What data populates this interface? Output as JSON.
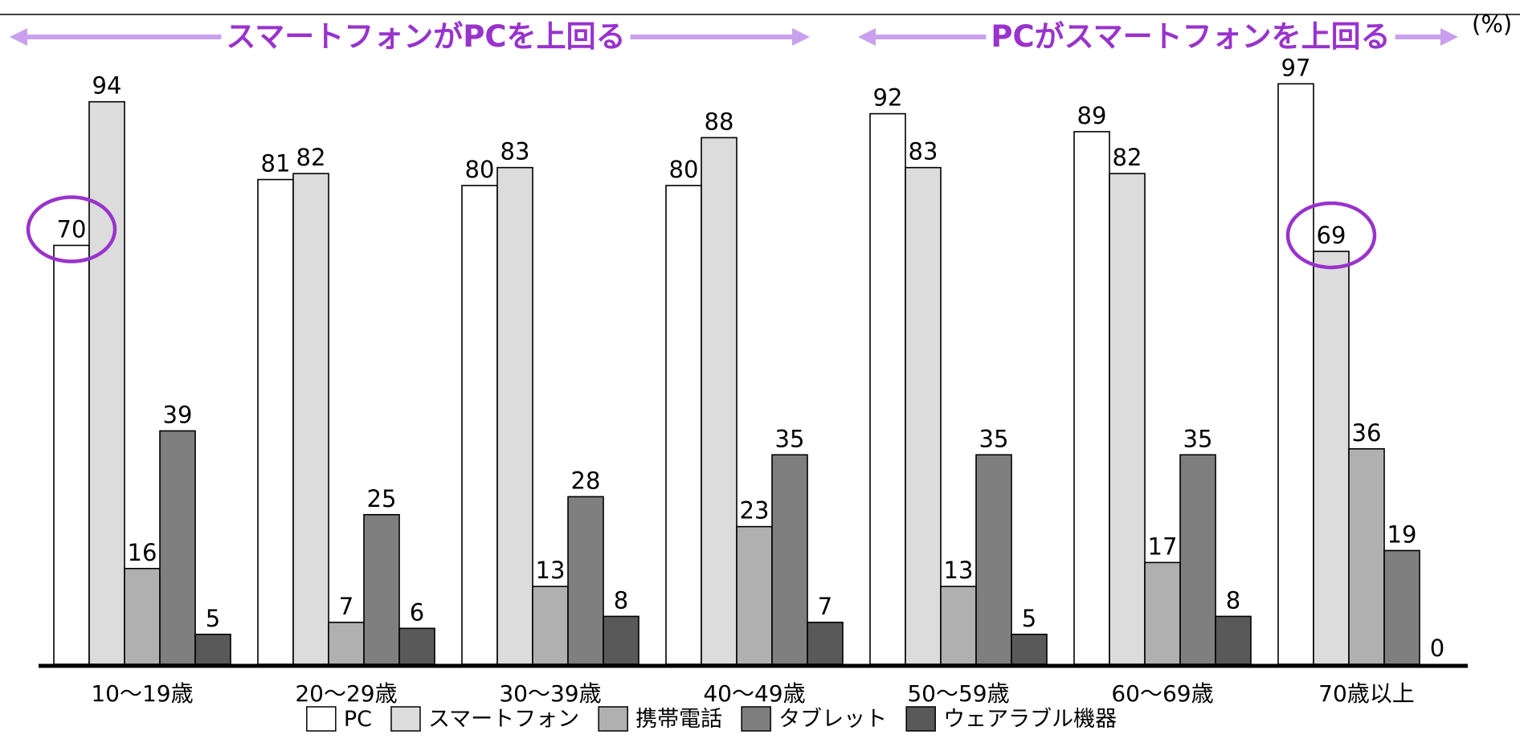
{
  "unit_label": "(%)",
  "headers": [
    {
      "text": "スマートフォンがPCを上回る"
    },
    {
      "text": "PCがスマートフォンを上回る"
    }
  ],
  "colors": {
    "accent": "#9933cc",
    "arrow": "#c9a0ee",
    "series": [
      "#ffffff",
      "#dcdcdc",
      "#b0b0b0",
      "#7f7f7f",
      "#595959"
    ],
    "stroke": "#000000"
  },
  "chart_data": {
    "type": "bar",
    "categories": [
      "10～19歳",
      "20～29歳",
      "30～39歳",
      "40～49歳",
      "50～59歳",
      "60～69歳",
      "70歳以上"
    ],
    "series": [
      {
        "name": "PC",
        "values": [
          70,
          81,
          80,
          80,
          92,
          89,
          97
        ]
      },
      {
        "name": "スマートフォン",
        "values": [
          94,
          82,
          83,
          88,
          83,
          82,
          69
        ]
      },
      {
        "name": "携帯電話",
        "values": [
          16,
          7,
          13,
          23,
          13,
          17,
          36
        ]
      },
      {
        "name": "タブレット",
        "values": [
          39,
          25,
          28,
          35,
          35,
          35,
          19
        ]
      },
      {
        "name": "ウェアラブル機器",
        "values": [
          5,
          6,
          8,
          7,
          5,
          8,
          0
        ]
      }
    ],
    "ylim": [
      0,
      100
    ],
    "grid": false,
    "legend_position": "bottom",
    "highlighted": [
      {
        "category_index": 0,
        "series_index": 0,
        "value": 70
      },
      {
        "category_index": 6,
        "series_index": 1,
        "value": 69
      }
    ]
  }
}
